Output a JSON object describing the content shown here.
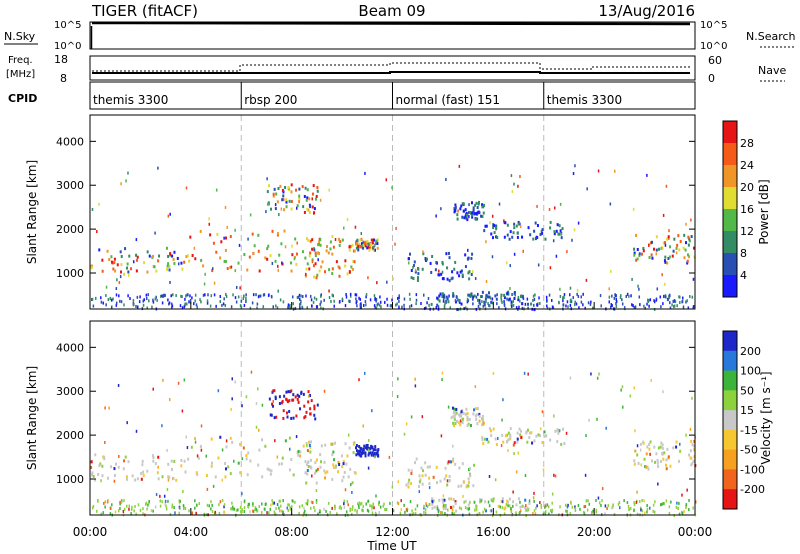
{
  "header": {
    "title": "TIGER (fitACF)",
    "beam": "Beam 09",
    "date": "13/Aug/2016"
  },
  "nsky_panel": {
    "left_label": "N.Sky",
    "right_label": "N.Search",
    "tick_top": "10^5",
    "tick_bottom": "10^0"
  },
  "freq_panel": {
    "left_label_line1": "Freq.",
    "left_label_line2": "[MHz]",
    "left_tick_top": "18",
    "left_tick_bottom": "8",
    "right_label": "Nave",
    "right_tick_top": "60",
    "right_tick_bottom": "0"
  },
  "cpid_panel": {
    "label": "CPID",
    "segments": [
      {
        "start_hour": 0,
        "text": "themis 3300"
      },
      {
        "start_hour": 6,
        "text": "rbsp 200"
      },
      {
        "start_hour": 12,
        "text": "normal (fast) 151"
      },
      {
        "start_hour": 18,
        "text": "themis 3300"
      }
    ]
  },
  "x_axis": {
    "label": "Time UT",
    "ticks": [
      "00:00",
      "04:00",
      "08:00",
      "12:00",
      "16:00",
      "20:00",
      "00:00"
    ],
    "range_hours": [
      0,
      24
    ]
  },
  "chart_data": [
    {
      "type": "heatmap",
      "name": "power",
      "ylabel": "Slant Range [km]",
      "ylim": [
        180,
        4600
      ],
      "y_ticks": [
        1000,
        2000,
        3000,
        4000
      ],
      "colorbar": {
        "label": "Power [dB]",
        "ticks": [
          "4",
          "8",
          "12",
          "16",
          "20",
          "24",
          "28"
        ],
        "colors": [
          "#1a1aff",
          "#2850b4",
          "#348c64",
          "#52b848",
          "#e1dc32",
          "#f09628",
          "#f55a19",
          "#e61414"
        ]
      },
      "scatter_regions": [
        {
          "t": [
            0,
            3.8
          ],
          "r": [
            1000,
            1600
          ]
        },
        {
          "t": [
            3.8,
            9.2
          ],
          "r": [
            1050,
            2000
          ]
        },
        {
          "t": [
            7.0,
            9.0
          ],
          "r": [
            2400,
            3050
          ]
        },
        {
          "t": [
            8.5,
            10.5
          ],
          "r": [
            900,
            1900
          ]
        },
        {
          "t": [
            10.5,
            11.4
          ],
          "r": [
            1550,
            1800
          ]
        },
        {
          "t": [
            12.5,
            15.2
          ],
          "r": [
            850,
            1500
          ]
        },
        {
          "t": [
            14.3,
            15.6
          ],
          "r": [
            2250,
            2650
          ]
        },
        {
          "t": [
            15.5,
            18.8
          ],
          "r": [
            1800,
            2200
          ]
        },
        {
          "t": [
            21.5,
            24
          ],
          "r": [
            1250,
            1900
          ]
        },
        {
          "t": [
            13.5,
            17.5
          ],
          "r": [
            300,
            600
          ]
        }
      ]
    },
    {
      "type": "heatmap",
      "name": "velocity",
      "ylabel": "Slant Range [km]",
      "ylim": [
        180,
        4600
      ],
      "y_ticks": [
        1000,
        2000,
        3000,
        4000
      ],
      "colorbar": {
        "label": "Velocity [m s⁻¹]",
        "ticks": [
          "200",
          "100",
          "50",
          "15",
          "-15",
          "-50",
          "-100",
          "-200"
        ],
        "colors": [
          "#1e28c8",
          "#2878dc",
          "#3cb43c",
          "#8cd23c",
          "#c8c8c8",
          "#f5c832",
          "#f5a01e",
          "#f0641e",
          "#e61414"
        ]
      },
      "scatter_regions": [
        {
          "t": [
            0,
            3.8
          ],
          "r": [
            1000,
            1600
          ]
        },
        {
          "t": [
            3.8,
            9.2
          ],
          "r": [
            1050,
            2000
          ]
        },
        {
          "t": [
            7.0,
            9.0
          ],
          "r": [
            2400,
            3050
          ]
        },
        {
          "t": [
            8.5,
            10.5
          ],
          "r": [
            900,
            1900
          ]
        },
        {
          "t": [
            10.5,
            11.4
          ],
          "r": [
            1550,
            1800
          ]
        },
        {
          "t": [
            12.5,
            15.2
          ],
          "r": [
            850,
            1500
          ]
        },
        {
          "t": [
            14.3,
            15.6
          ],
          "r": [
            2250,
            2650
          ]
        },
        {
          "t": [
            15.5,
            18.8
          ],
          "r": [
            1800,
            2200
          ]
        },
        {
          "t": [
            21.5,
            24
          ],
          "r": [
            1250,
            1900
          ]
        },
        {
          "t": [
            13.5,
            17.5
          ],
          "r": [
            300,
            600
          ]
        }
      ]
    }
  ]
}
